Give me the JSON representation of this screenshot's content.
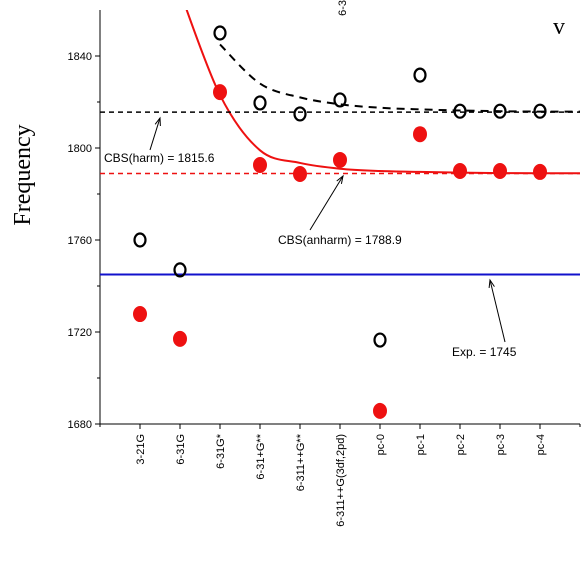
{
  "chart_data": {
    "type": "scatter",
    "y_label": "Frequency",
    "corner_label": "v",
    "top_label": "6-3",
    "categories": [
      "3-21G",
      "6-31G",
      "6-31G*",
      "6-31+G**",
      "6-311++G**",
      "6-311++G(3df,2pd)",
      "pc-0",
      "pc-1",
      "pc-2",
      "pc-3",
      "pc-4"
    ],
    "ylim": [
      1680,
      1860
    ],
    "yticks": [
      1680,
      1720,
      1760,
      1800,
      1840
    ],
    "series": [
      {
        "name": "harmonic",
        "color": "#000000",
        "marker": "open",
        "values": [
          1760,
          1747,
          1850,
          1819.6,
          1814.8,
          1820.9,
          1716.5,
          1831.7,
          1816,
          1816,
          1816
        ]
      },
      {
        "name": "anharmonic",
        "color": "#ee1111",
        "marker": "filled",
        "values": [
          1727.8,
          1717,
          1824.3,
          1792.6,
          1788.7,
          1794.8,
          1685.7,
          1806,
          1790,
          1790,
          1789.6
        ]
      },
      {
        "name": "harmonic fit",
        "color": "#000000",
        "marker": "dashed-curve",
        "values": [
          null,
          null,
          1845,
          1828,
          1822,
          1819,
          1817.5,
          1816.8,
          1816.3,
          1816,
          1815.8
        ]
      },
      {
        "name": "anharmonic fit",
        "color": "#ee1111",
        "marker": "curve",
        "values": [
          null,
          1868,
          1823,
          1799,
          1793.5,
          1791,
          1790,
          1789.6,
          1789.3,
          1789.1,
          1789
        ]
      }
    ],
    "reference_lines": [
      {
        "value": 1815.6,
        "label": "CBS(harm) = 1815.6",
        "color": "#000000",
        "style": "dashed"
      },
      {
        "value": 1788.9,
        "label": "CBS(anharm) = 1788.9",
        "color": "#ee1111",
        "style": "dashed"
      },
      {
        "value": 1745,
        "label": "Exp. = 1745",
        "color": "#1111cc",
        "style": "solid"
      }
    ]
  }
}
